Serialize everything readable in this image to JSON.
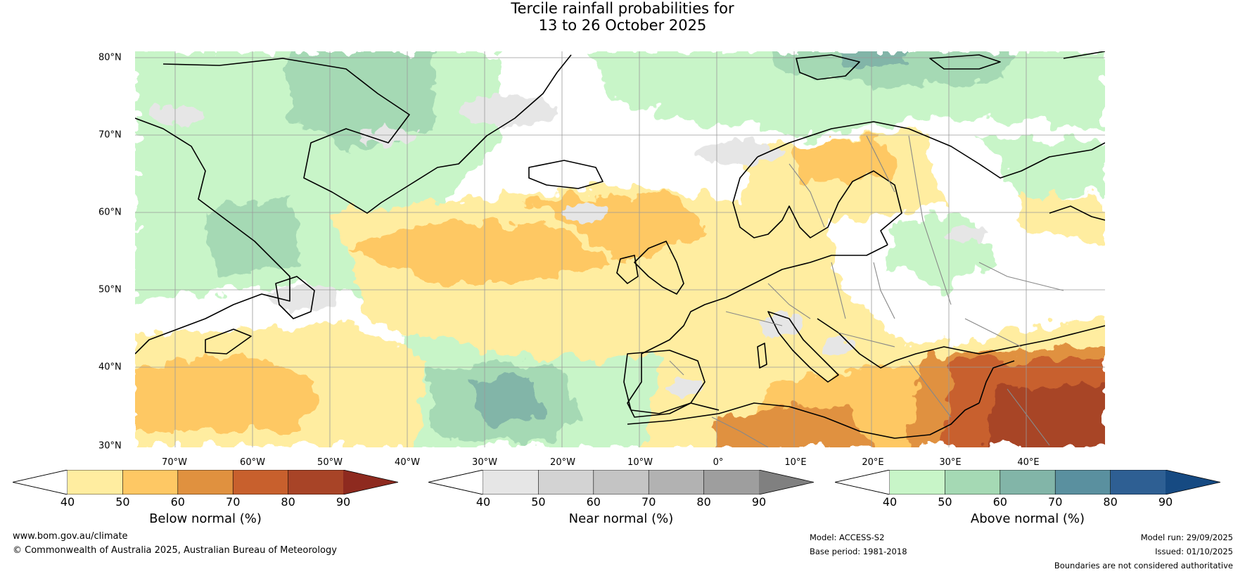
{
  "title": {
    "line1": "Tercile rainfall probabilities for",
    "line2": "13 to 26 October 2025"
  },
  "map": {
    "lat_labels": [
      "80°N",
      "70°N",
      "60°N",
      "50°N",
      "40°N",
      "30°N"
    ],
    "lon_labels": [
      "70°W",
      "60°W",
      "50°W",
      "40°W",
      "30°W",
      "20°W",
      "10°W",
      "0°",
      "10°E",
      "20°E",
      "30°E",
      "40°E"
    ]
  },
  "legends": [
    {
      "title": "Below normal (%)",
      "ticks": [
        "40",
        "50",
        "60",
        "70",
        "80",
        "90"
      ],
      "colors": [
        "#ffffff",
        "#ffeda0",
        "#fec864",
        "#e0913f",
        "#c8602d",
        "#a84427",
        "#8e2a1f"
      ]
    },
    {
      "title": "Near normal (%)",
      "ticks": [
        "40",
        "50",
        "60",
        "70",
        "80",
        "90"
      ],
      "colors": [
        "#ffffff",
        "#e6e6e6",
        "#d3d3d3",
        "#c4c4c4",
        "#b2b2b2",
        "#9e9e9e",
        "#808080"
      ]
    },
    {
      "title": "Above normal (%)",
      "ticks": [
        "40",
        "50",
        "60",
        "70",
        "80",
        "90"
      ],
      "colors": [
        "#ffffff",
        "#c8f5c8",
        "#a5d9b4",
        "#82b5a8",
        "#5a909f",
        "#2e5f93",
        "#164a82"
      ]
    }
  ],
  "footer": {
    "website": "www.bom.gov.au/climate",
    "copyright": "© Commonwealth of Australia 2025, Australian Bureau of Meteorology",
    "model": "Model: ACCESS-S2",
    "base_period": "Base period: 1981-2018",
    "model_run": "Model run: 29/09/2025",
    "issued": "Issued: 01/10/2025",
    "disclaimer": "Boundaries are not considered authoritative"
  }
}
